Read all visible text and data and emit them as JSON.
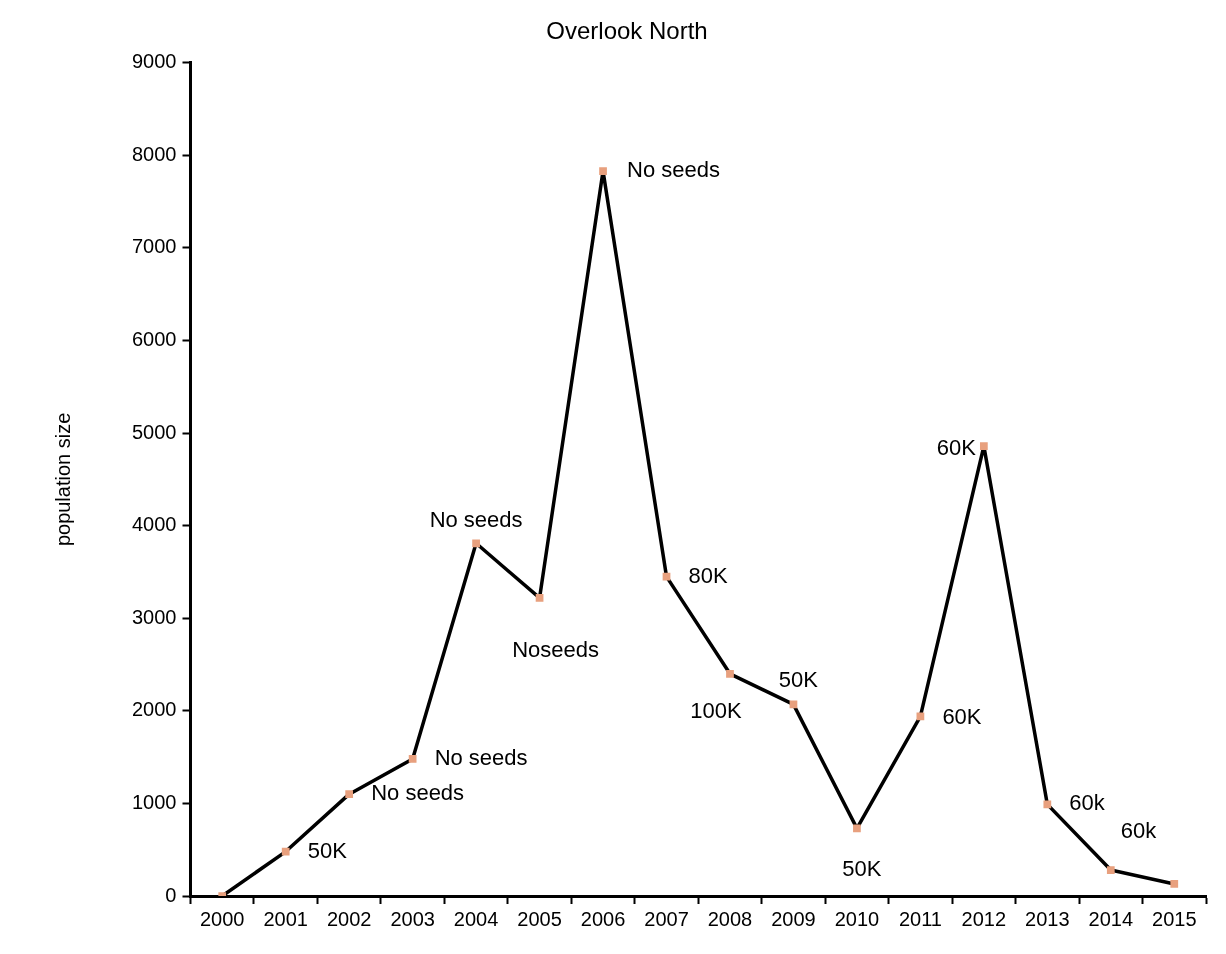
{
  "chart_data": {
    "type": "line",
    "title": "Overlook North",
    "ylabel": "population size",
    "categories": [
      "2000",
      "2001",
      "2002",
      "2003",
      "2004",
      "2005",
      "2006",
      "2007",
      "2008",
      "2009",
      "2010",
      "2011",
      "2012",
      "2013",
      "2014",
      "2015"
    ],
    "series": [
      {
        "color": "#000000",
        "values": [
          0,
          480,
          1100,
          1480,
          3810,
          3220,
          7830,
          3450,
          2400,
          2070,
          730,
          1940,
          4860,
          990,
          280,
          130
        ]
      }
    ],
    "ylim": [
      0,
      9000
    ],
    "yticks": [
      0,
      1000,
      2000,
      3000,
      4000,
      5000,
      6000,
      7000,
      8000,
      9000
    ],
    "grid": false,
    "legend": false,
    "marker": "square",
    "line_style": "solid",
    "annotations": [
      {
        "text": "50K",
        "x": "2001",
        "y": 480
      },
      {
        "text": "No seeds",
        "x": "2002",
        "y": 1100
      },
      {
        "text": "No seeds",
        "x": "2003",
        "y": 1480
      },
      {
        "text": "No seeds",
        "x": "2004",
        "y": 3810
      },
      {
        "text": "Noseeds",
        "x": "2005",
        "y": 3220
      },
      {
        "text": "No seeds",
        "x": "2006",
        "y": 7830
      },
      {
        "text": "80K",
        "x": "2007",
        "y": 3450
      },
      {
        "text": "100K",
        "x": "2008",
        "y": 2400
      },
      {
        "text": "50K",
        "x": "2009",
        "y": 2070
      },
      {
        "text": "50K",
        "x": "2010",
        "y": 730
      },
      {
        "text": "60K",
        "x": "2011",
        "y": 1940
      },
      {
        "text": "60K",
        "x": "2012",
        "y": 4860
      },
      {
        "text": "60k",
        "x": "2013",
        "y": 990
      },
      {
        "text": "60k",
        "x": "2014",
        "y": 280
      }
    ]
  }
}
